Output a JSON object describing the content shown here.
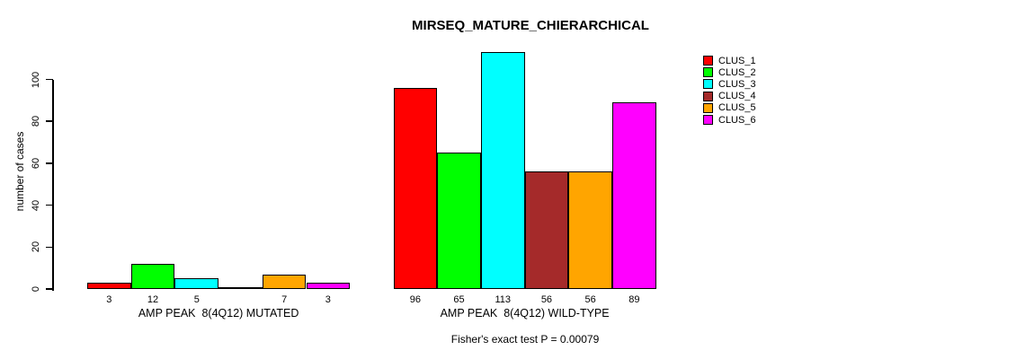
{
  "chart_data": {
    "type": "bar",
    "title": "MIRSEQ_MATURE_CHIERARCHICAL",
    "ylabel": "number of cases",
    "xlabel": "",
    "note": "Fisher's exact test P = 0.00079",
    "ylim": [
      0,
      113
    ],
    "yticks": [
      0,
      20,
      40,
      60,
      80,
      100
    ],
    "grid": false,
    "legend_position": "right",
    "clusters": [
      "CLUS_1",
      "CLUS_2",
      "CLUS_3",
      "CLUS_4",
      "CLUS_5",
      "CLUS_6"
    ],
    "colors": [
      "#FF0000",
      "#00FF00",
      "#00FFFF",
      "#A52A2A",
      "#FFA500",
      "#FF00FF"
    ],
    "groups": [
      {
        "label": "AMP PEAK  8(4Q12) MUTATED",
        "values": [
          3,
          12,
          5,
          0,
          7,
          3
        ],
        "value_labels": [
          "3",
          "12",
          "5",
          "",
          "7",
          "3"
        ]
      },
      {
        "label": "AMP PEAK  8(4Q12) WILD-TYPE",
        "values": [
          96,
          65,
          113,
          56,
          56,
          89
        ],
        "value_labels": [
          "96",
          "65",
          "113",
          "56",
          "56",
          "89"
        ]
      }
    ]
  }
}
